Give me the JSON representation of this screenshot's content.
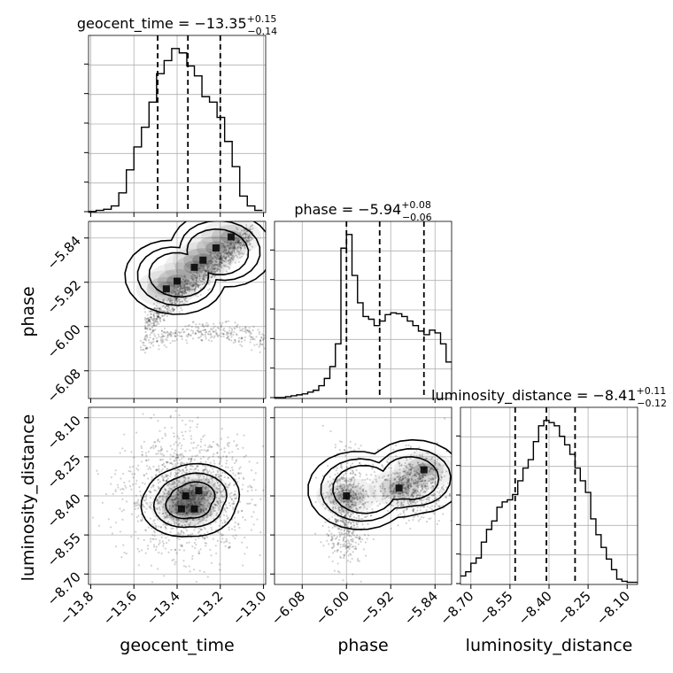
{
  "chart_data": {
    "type": "corner",
    "parameters": [
      "geocent_time",
      "phase",
      "luminosity_distance"
    ],
    "grid": true,
    "titles": [
      {
        "param": "geocent_time",
        "prefix": "geocent_time = ",
        "median": "−13.35",
        "upper": "+0.15",
        "lower": "−0.14"
      },
      {
        "param": "phase",
        "prefix": "phase = ",
        "median": "−5.94",
        "upper": "+0.08",
        "lower": "−0.06"
      },
      {
        "param": "luminosity_distance",
        "prefix": "luminosity_distance = ",
        "median": "−8.41",
        "upper": "+0.11",
        "lower": "−0.12"
      }
    ],
    "axis_labels": {
      "x": [
        "geocent_time",
        "phase",
        "luminosity_distance"
      ],
      "y": [
        "phase",
        "luminosity_distance"
      ]
    },
    "ranges": {
      "geocent_time": [
        -13.81,
        -12.99
      ],
      "phase": [
        -6.13,
        -5.81
      ],
      "luminosity_distance": [
        -8.74,
        -8.06
      ]
    },
    "ticks": {
      "geocent_time": {
        "values": [
          -13.8,
          -13.6,
          -13.4,
          -13.2,
          -13.0
        ],
        "labels": [
          "−13.8",
          "−13.6",
          "−13.4",
          "−13.2",
          "−13.0"
        ]
      },
      "phase": {
        "values": [
          -6.08,
          -6.0,
          -5.92,
          -5.84
        ],
        "labels": [
          "−6.08",
          "−6.00",
          "−5.92",
          "−5.84"
        ]
      },
      "luminosity_distance": {
        "values": [
          -8.7,
          -8.55,
          -8.4,
          -8.25,
          -8.1
        ],
        "labels": [
          "−8.70",
          "−8.55",
          "−8.40",
          "−8.25",
          "−8.10"
        ]
      }
    },
    "histograms": [
      {
        "param": "geocent_time",
        "edges": [
          -13.81,
          -13.775,
          -13.74,
          -13.705,
          -13.67,
          -13.635,
          -13.6,
          -13.565,
          -13.53,
          -13.495,
          -13.46,
          -13.425,
          -13.39,
          -13.355,
          -13.32,
          -13.285,
          -13.25,
          -13.215,
          -13.18,
          -13.145,
          -13.11,
          -13.075,
          -13.04,
          -13.005
        ],
        "counts": [
          1,
          2,
          3,
          6,
          18,
          39,
          60,
          78,
          101,
          127,
          139,
          150,
          146,
          134,
          125,
          106,
          101,
          87,
          65,
          42,
          15,
          6,
          2
        ],
        "quantiles": [
          -13.49,
          -13.35,
          -13.2
        ]
      },
      {
        "param": "phase",
        "edges": [
          -6.13,
          -6.12,
          -6.11,
          -6.1,
          -6.09,
          -6.08,
          -6.07,
          -6.06,
          -6.05,
          -6.04,
          -6.03,
          -6.02,
          -6.01,
          -6.0,
          -5.99,
          -5.98,
          -5.97,
          -5.96,
          -5.95,
          -5.94,
          -5.93,
          -5.92,
          -5.91,
          -5.9,
          -5.89,
          -5.88,
          -5.87,
          -5.86,
          -5.85,
          -5.84,
          -5.83,
          -5.82,
          -5.81
        ],
        "counts": [
          1,
          1,
          2,
          3,
          4,
          5,
          7,
          9,
          14,
          22,
          35,
          60,
          165,
          180,
          135,
          105,
          90,
          87,
          80,
          85,
          92,
          94,
          93,
          90,
          85,
          80,
          74,
          70,
          75,
          72,
          60,
          40
        ],
        "quantiles": [
          -6.0,
          -5.94,
          -5.86
        ]
      },
      {
        "param": "luminosity_distance",
        "edges": [
          -8.74,
          -8.72,
          -8.7,
          -8.68,
          -8.66,
          -8.64,
          -8.62,
          -8.6,
          -8.58,
          -8.56,
          -8.54,
          -8.52,
          -8.5,
          -8.48,
          -8.46,
          -8.44,
          -8.42,
          -8.4,
          -8.38,
          -8.36,
          -8.34,
          -8.32,
          -8.3,
          -8.28,
          -8.26,
          -8.24,
          -8.22,
          -8.2,
          -8.18,
          -8.16,
          -8.14,
          -8.12,
          -8.1,
          -8.08,
          -8.06
        ],
        "counts": [
          8,
          12,
          20,
          25,
          40,
          52,
          60,
          73,
          78,
          80,
          85,
          98,
          110,
          118,
          135,
          150,
          155,
          153,
          150,
          140,
          132,
          123,
          110,
          98,
          87,
          62,
          47,
          35,
          24,
          14,
          5,
          3,
          2,
          2
        ],
        "quantiles": [
          -8.53,
          -8.41,
          -8.3
        ]
      }
    ],
    "scatter_2d": [
      {
        "x": "geocent_time",
        "y": "phase",
        "modes": [
          {
            "from": [
              -13.55,
              -6.0
            ],
            "to": [
              -13.05,
              -5.83
            ],
            "spread": 0.012,
            "n": 900
          },
          {
            "center": [
              -13.25,
              -6.0
            ],
            "width": 0.4,
            "height": 0.02,
            "n": 350
          }
        ],
        "density_peaks": [
          [
            -13.4,
            -5.918
          ],
          [
            -13.32,
            -5.893
          ],
          [
            -13.28,
            -5.88
          ],
          [
            -13.22,
            -5.858
          ],
          [
            -13.15,
            -5.838
          ],
          [
            -13.45,
            -5.932
          ]
        ]
      },
      {
        "x": "geocent_time",
        "y": "luminosity_distance",
        "modes": [
          {
            "center": [
              -13.35,
              -8.4
            ],
            "sx": 0.14,
            "sy": 0.11,
            "n": 1500
          }
        ],
        "density_peaks": [
          [
            -13.38,
            -8.45
          ],
          [
            -13.32,
            -8.45
          ],
          [
            -13.36,
            -8.4
          ],
          [
            -13.3,
            -8.38
          ]
        ]
      },
      {
        "x": "phase",
        "y": "luminosity_distance",
        "modes": [
          {
            "center": [
              -6.0,
              -8.45
            ],
            "sx": 0.018,
            "sy": 0.1,
            "n": 700
          },
          {
            "center": [
              -5.88,
              -8.36
            ],
            "sx": 0.03,
            "sy": 0.06,
            "n": 700
          }
        ],
        "density_peaks": [
          [
            -6.0,
            -8.4
          ],
          [
            -5.905,
            -8.37
          ],
          [
            -5.86,
            -8.3
          ]
        ]
      }
    ]
  }
}
